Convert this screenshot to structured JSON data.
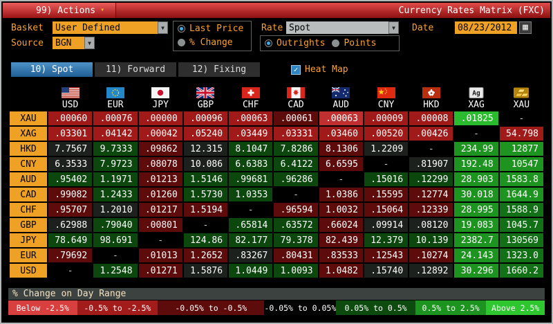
{
  "titlebar": {
    "actions_label": "99) Actions",
    "title": "Currency Rates Matrix (FXC)"
  },
  "controls": {
    "basket_label": "Basket",
    "basket_value": "User Defined",
    "source_label": "Source",
    "source_value": "BGN",
    "price_mode_options": [
      {
        "label": "Last Price",
        "selected": true
      },
      {
        "label": "% Change",
        "selected": false
      }
    ],
    "rate_label": "Rate",
    "rate_value": "Spot",
    "rate_type_options": [
      {
        "label": "Outrights",
        "selected": true
      },
      {
        "label": "Points",
        "selected": false
      }
    ],
    "date_label": "Date",
    "date_value": "08/23/2012"
  },
  "tabs": [
    {
      "label": "10) Spot",
      "active": true
    },
    {
      "label": "11) Forward",
      "active": false
    },
    {
      "label": "12) Fixing",
      "active": false
    }
  ],
  "heatmap": {
    "label": "Heat Map",
    "checked": true
  },
  "matrix": {
    "columns": [
      {
        "code": "USD",
        "flag": "us-flag"
      },
      {
        "code": "EUR",
        "flag": "eu-flag"
      },
      {
        "code": "JPY",
        "flag": "jp-flag"
      },
      {
        "code": "GBP",
        "flag": "gb-flag"
      },
      {
        "code": "CHF",
        "flag": "ch-flag"
      },
      {
        "code": "CAD",
        "flag": "ca-flag"
      },
      {
        "code": "AUD",
        "flag": "au-flag"
      },
      {
        "code": "CNY",
        "flag": "cn-flag"
      },
      {
        "code": "HKD",
        "flag": "hk-flag"
      },
      {
        "code": "XAG",
        "flag": "silver-icon"
      },
      {
        "code": "XAU",
        "flag": "gold-icon"
      }
    ],
    "rows": [
      {
        "label": "XAU",
        "cells": [
          {
            "v": ".00060",
            "c": "r2"
          },
          {
            "v": ".00076",
            "c": "r2"
          },
          {
            "v": ".00000",
            "c": "r2"
          },
          {
            "v": ".00096",
            "c": "r2"
          },
          {
            "v": ".00063",
            "c": "r2"
          },
          {
            "v": ".00061",
            "c": "r1"
          },
          {
            "v": ".00063",
            "c": "r3"
          },
          {
            "v": ".00009",
            "c": "r2"
          },
          {
            "v": ".00008",
            "c": "r2"
          },
          {
            "v": ".01825",
            "c": "g3"
          },
          {
            "v": "-",
            "c": "d"
          }
        ]
      },
      {
        "label": "XAG",
        "cells": [
          {
            "v": ".03301",
            "c": "r2"
          },
          {
            "v": ".04142",
            "c": "r2"
          },
          {
            "v": ".00042",
            "c": "r2"
          },
          {
            "v": ".05240",
            "c": "r2"
          },
          {
            "v": ".03449",
            "c": "r2"
          },
          {
            "v": ".03331",
            "c": "r2"
          },
          {
            "v": ".03460",
            "c": "r2"
          },
          {
            "v": ".00520",
            "c": "r2"
          },
          {
            "v": ".00426",
            "c": "r2"
          },
          {
            "v": "-",
            "c": "d"
          },
          {
            "v": "54.798",
            "c": "r2"
          }
        ]
      },
      {
        "label": "HKD",
        "cells": [
          {
            "v": "7.7567",
            "c": "n"
          },
          {
            "v": "9.7333",
            "c": "g1"
          },
          {
            "v": ".09862",
            "c": "r1"
          },
          {
            "v": "12.315",
            "c": "n"
          },
          {
            "v": "8.1047",
            "c": "g1"
          },
          {
            "v": "7.8286",
            "c": "g1"
          },
          {
            "v": "8.1306",
            "c": "r1"
          },
          {
            "v": "1.2209",
            "c": "n"
          },
          {
            "v": "-",
            "c": "d"
          },
          {
            "v": "234.99",
            "c": "g2"
          },
          {
            "v": "12877",
            "c": "g2"
          }
        ]
      },
      {
        "label": "CNY",
        "cells": [
          {
            "v": "6.3533",
            "c": "n"
          },
          {
            "v": "7.9723",
            "c": "g1"
          },
          {
            "v": ".08078",
            "c": "r1"
          },
          {
            "v": "10.086",
            "c": "n"
          },
          {
            "v": "6.6383",
            "c": "g1"
          },
          {
            "v": "6.4122",
            "c": "g1"
          },
          {
            "v": "6.6595",
            "c": "r1"
          },
          {
            "v": "-",
            "c": "d"
          },
          {
            "v": ".81907",
            "c": "n"
          },
          {
            "v": "192.48",
            "c": "g2"
          },
          {
            "v": "10547",
            "c": "g2"
          }
        ]
      },
      {
        "label": "AUD",
        "cells": [
          {
            "v": ".95402",
            "c": "g1"
          },
          {
            "v": "1.1971",
            "c": "g1"
          },
          {
            "v": ".01213",
            "c": "r1"
          },
          {
            "v": "1.5146",
            "c": "g1"
          },
          {
            "v": ".99681",
            "c": "g1"
          },
          {
            "v": ".96286",
            "c": "g1"
          },
          {
            "v": "-",
            "c": "d"
          },
          {
            "v": ".15016",
            "c": "g1"
          },
          {
            "v": ".12299",
            "c": "g1"
          },
          {
            "v": "28.903",
            "c": "g2"
          },
          {
            "v": "1583.8",
            "c": "g2"
          }
        ]
      },
      {
        "label": "CAD",
        "cells": [
          {
            "v": ".99082",
            "c": "r1"
          },
          {
            "v": "1.2433",
            "c": "g1"
          },
          {
            "v": ".01260",
            "c": "r1"
          },
          {
            "v": "1.5730",
            "c": "g1"
          },
          {
            "v": "1.0353",
            "c": "g1"
          },
          {
            "v": "-",
            "c": "d"
          },
          {
            "v": "1.0386",
            "c": "r1"
          },
          {
            "v": ".15595",
            "c": "r1"
          },
          {
            "v": ".12774",
            "c": "r1"
          },
          {
            "v": "30.018",
            "c": "g2"
          },
          {
            "v": "1644.9",
            "c": "g2"
          }
        ]
      },
      {
        "label": "CHF",
        "cells": [
          {
            "v": ".95707",
            "c": "r1"
          },
          {
            "v": "1.2010",
            "c": "n"
          },
          {
            "v": ".01217",
            "c": "r1"
          },
          {
            "v": "1.5194",
            "c": "r1"
          },
          {
            "v": "-",
            "c": "d"
          },
          {
            "v": ".96594",
            "c": "r1"
          },
          {
            "v": "1.0032",
            "c": "r1"
          },
          {
            "v": ".15064",
            "c": "r1"
          },
          {
            "v": ".12339",
            "c": "r1"
          },
          {
            "v": "28.995",
            "c": "g2"
          },
          {
            "v": "1588.9",
            "c": "g15"
          }
        ]
      },
      {
        "label": "GBP",
        "cells": [
          {
            "v": ".62988",
            "c": "n"
          },
          {
            "v": ".79040",
            "c": "g1"
          },
          {
            "v": ".00801",
            "c": "r1"
          },
          {
            "v": "-",
            "c": "d"
          },
          {
            "v": ".65814",
            "c": "g1"
          },
          {
            "v": ".63572",
            "c": "g1"
          },
          {
            "v": ".66024",
            "c": "r1"
          },
          {
            "v": ".09914",
            "c": "n"
          },
          {
            "v": ".08120",
            "c": "n"
          },
          {
            "v": "19.083",
            "c": "g2"
          },
          {
            "v": "1045.7",
            "c": "g15"
          }
        ]
      },
      {
        "label": "JPY",
        "cells": [
          {
            "v": "78.649",
            "c": "g1"
          },
          {
            "v": "98.691",
            "c": "g1"
          },
          {
            "v": "-",
            "c": "d"
          },
          {
            "v": "124.86",
            "c": "g1"
          },
          {
            "v": "82.177",
            "c": "g1"
          },
          {
            "v": "79.378",
            "c": "g1"
          },
          {
            "v": "82.439",
            "c": "r1"
          },
          {
            "v": "12.379",
            "c": "g1"
          },
          {
            "v": "10.139",
            "c": "g1"
          },
          {
            "v": "2382.7",
            "c": "g2"
          },
          {
            "v": "130569",
            "c": "g15"
          }
        ]
      },
      {
        "label": "EUR",
        "cells": [
          {
            "v": ".79692",
            "c": "r1"
          },
          {
            "v": "-",
            "c": "d"
          },
          {
            "v": ".01013",
            "c": "r1"
          },
          {
            "v": "1.2652",
            "c": "r1"
          },
          {
            "v": ".83267",
            "c": "n"
          },
          {
            "v": ".80431",
            "c": "r1"
          },
          {
            "v": ".83533",
            "c": "r1"
          },
          {
            "v": ".12543",
            "c": "r1"
          },
          {
            "v": ".10274",
            "c": "r1"
          },
          {
            "v": "24.143",
            "c": "g2"
          },
          {
            "v": "1323.0",
            "c": "g15"
          }
        ]
      },
      {
        "label": "USD",
        "cells": [
          {
            "v": "-",
            "c": "d"
          },
          {
            "v": "1.2548",
            "c": "g1"
          },
          {
            "v": ".01271",
            "c": "r1"
          },
          {
            "v": "1.5876",
            "c": "n"
          },
          {
            "v": "1.0449",
            "c": "g1"
          },
          {
            "v": "1.0093",
            "c": "g1"
          },
          {
            "v": "1.0482",
            "c": "r1"
          },
          {
            "v": ".15740",
            "c": "n"
          },
          {
            "v": ".12892",
            "c": "n"
          },
          {
            "v": "30.296",
            "c": "g2"
          },
          {
            "v": "1660.2",
            "c": "g15"
          }
        ]
      }
    ]
  },
  "colors": {
    "r1": "#5e0b0b",
    "r2": "#a01a1a",
    "r3": "#c03030",
    "n": "#1d211e",
    "d": "#000000",
    "g1": "#0c470e",
    "g15": "#127016",
    "g2": "#1e9420",
    "g3": "#2bbb2e",
    "accent_orange": "#efa125",
    "tab_active_blue": "#2d6da3"
  },
  "legend": {
    "title": "% Change on Day Range",
    "ranges": [
      {
        "label": "Below -2.5%",
        "color": "#d84040",
        "flex": 100
      },
      {
        "label": "-0.5% to -2.5%",
        "color": "#a31c1c",
        "flex": 117
      },
      {
        "label": "-0.05% to -0.5%",
        "color": "#5e0b0b",
        "flex": 155
      },
      {
        "label": "-0.05% to 0.05%",
        "color": "#050505",
        "flex": 95
      },
      {
        "label": "0.05% to 0.5%",
        "color": "#0c4a0e",
        "flex": 115
      },
      {
        "label": "0.5% to 2.5%",
        "color": "#1e9420",
        "flex": 103
      },
      {
        "label": "Above 2.5%",
        "color": "#2fc72f",
        "flex": 85
      }
    ]
  }
}
